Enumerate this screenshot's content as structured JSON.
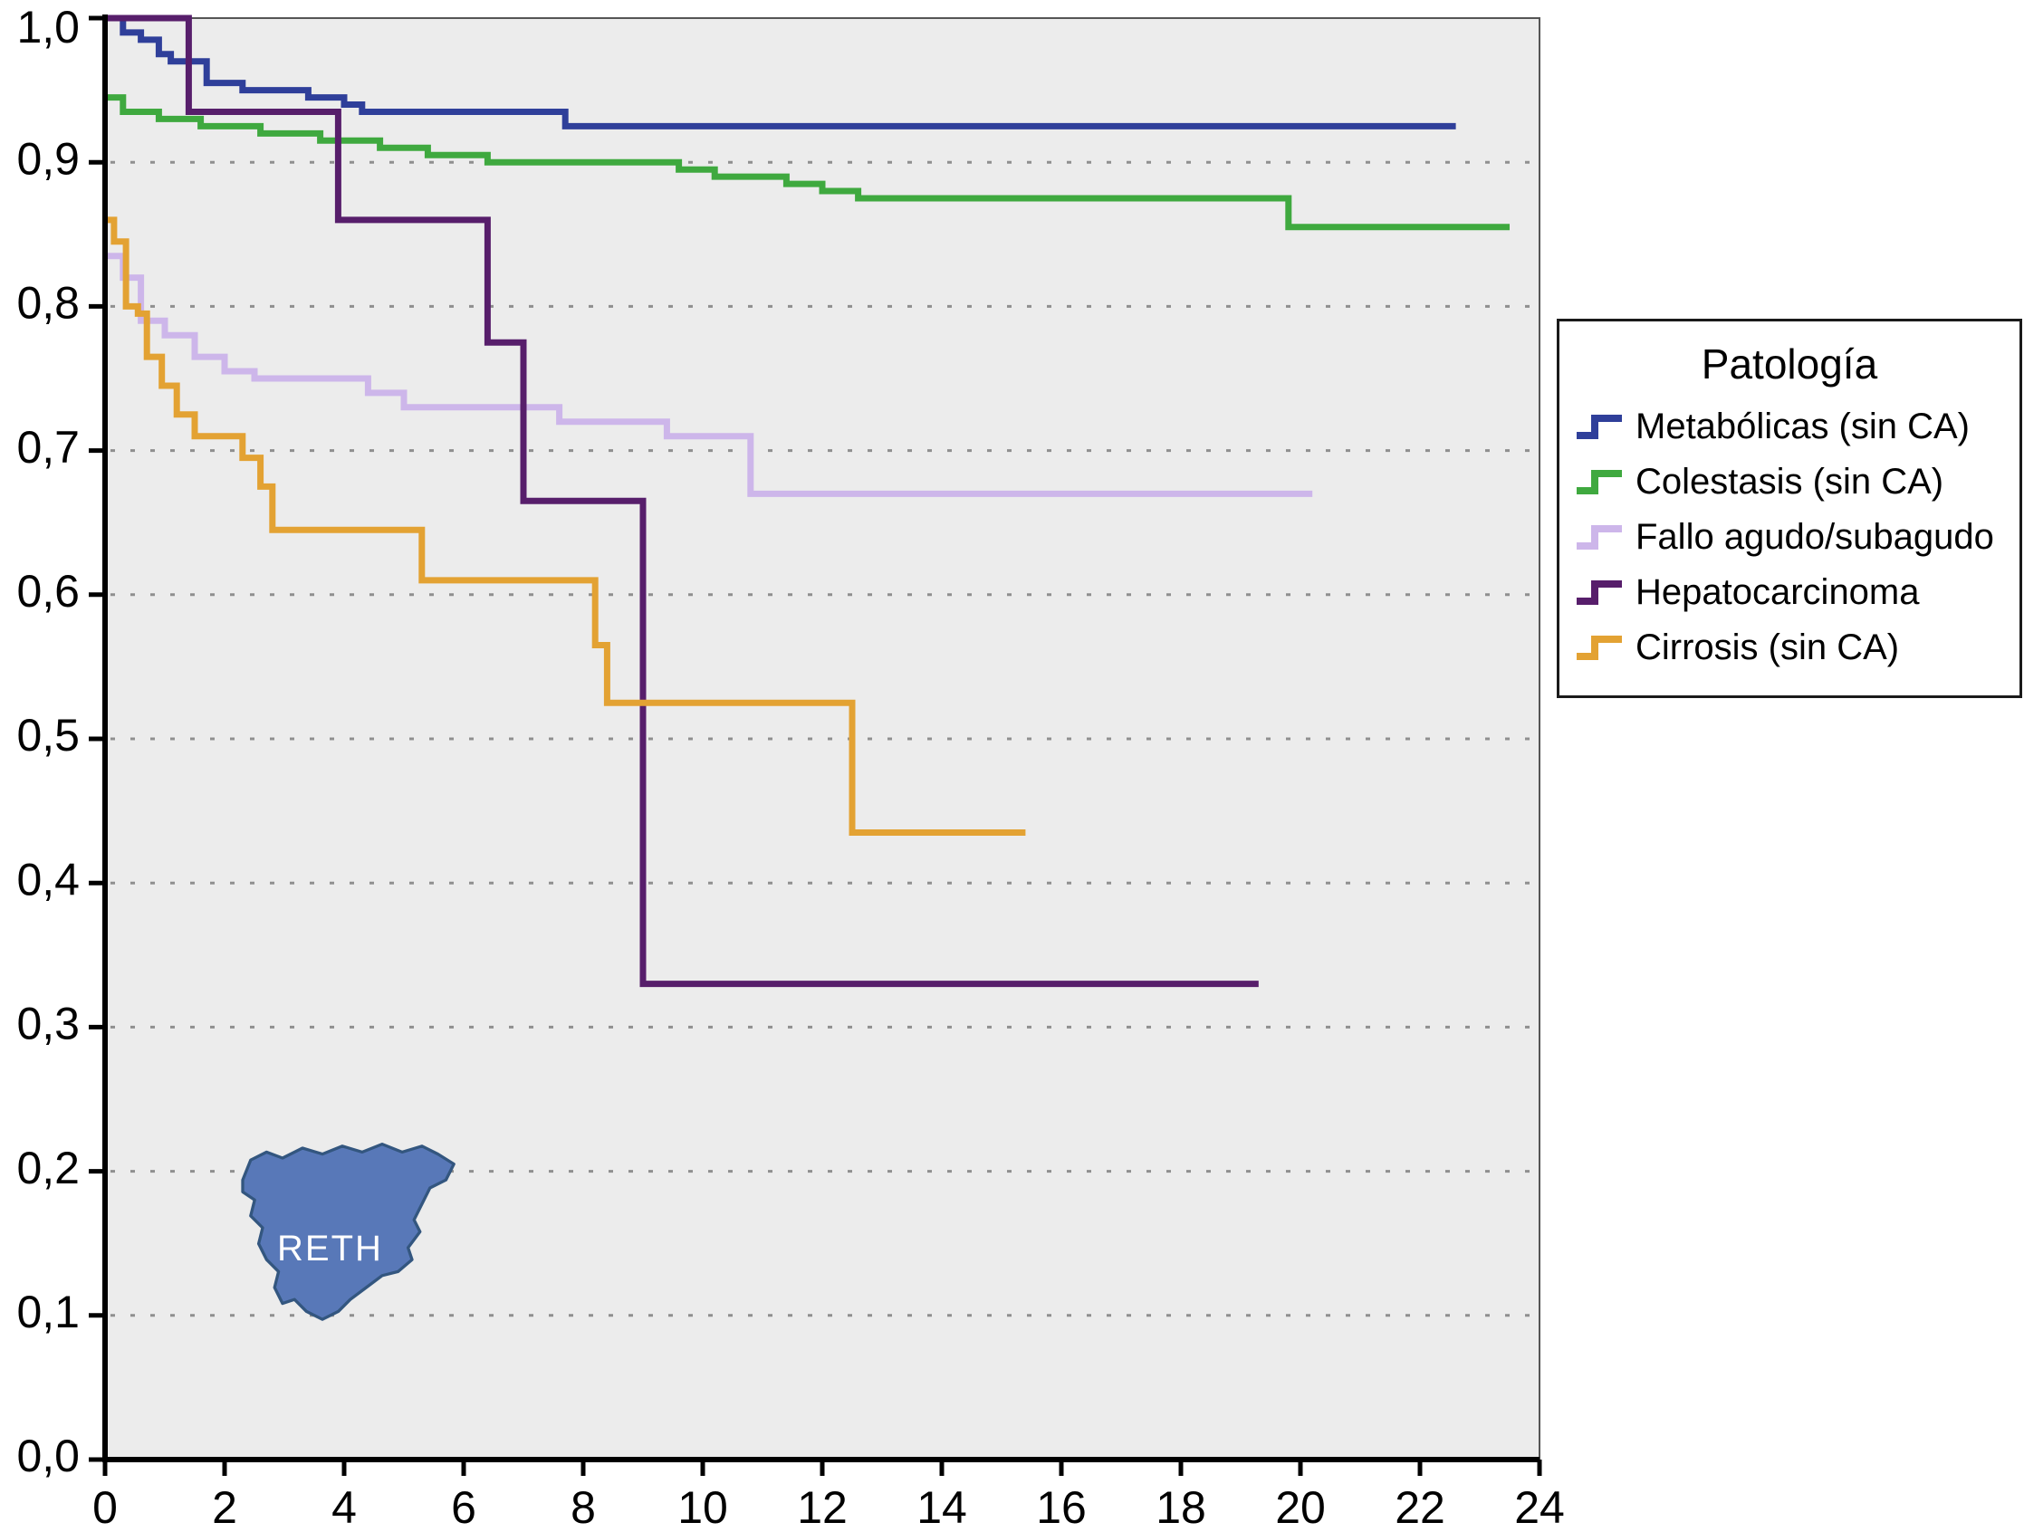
{
  "chart_data": {
    "type": "line",
    "subtype": "kaplan-meier-step",
    "title": "",
    "xlabel": "",
    "ylabel": "",
    "xlim": [
      0,
      24
    ],
    "ylim": [
      0.0,
      1.0
    ],
    "x_ticks": [
      {
        "value": 0,
        "label": "0"
      },
      {
        "value": 2,
        "label": "2"
      },
      {
        "value": 4,
        "label": "4"
      },
      {
        "value": 6,
        "label": "6"
      },
      {
        "value": 8,
        "label": "8"
      },
      {
        "value": 10,
        "label": "10"
      },
      {
        "value": 12,
        "label": "12"
      },
      {
        "value": 14,
        "label": "14"
      },
      {
        "value": 16,
        "label": "16"
      },
      {
        "value": 18,
        "label": "18"
      },
      {
        "value": 20,
        "label": "20"
      },
      {
        "value": 22,
        "label": "22"
      },
      {
        "value": 24,
        "label": "24"
      }
    ],
    "y_ticks": [
      {
        "value": 0.0,
        "label": "0,0"
      },
      {
        "value": 0.1,
        "label": "0,1"
      },
      {
        "value": 0.2,
        "label": "0,2"
      },
      {
        "value": 0.3,
        "label": "0,3"
      },
      {
        "value": 0.4,
        "label": "0,4"
      },
      {
        "value": 0.5,
        "label": "0,5"
      },
      {
        "value": 0.6,
        "label": "0,6"
      },
      {
        "value": 0.7,
        "label": "0,7"
      },
      {
        "value": 0.8,
        "label": "0,8"
      },
      {
        "value": 0.9,
        "label": "0,9"
      },
      {
        "value": 1.0,
        "label": "1,0"
      }
    ],
    "grid": {
      "horizontal": true,
      "style": "dashed",
      "color": "#8f8f8f"
    },
    "plot_background": "#ececec",
    "legend": {
      "title": "Patología",
      "position": "right"
    },
    "watermark": {
      "label": "RETH",
      "map": "spain-silhouette",
      "map_color": "#5878b8"
    },
    "series": [
      {
        "name": "Metabólicas (sin CA)",
        "color": "#2f3f9a",
        "step_points": [
          [
            0,
            1.0
          ],
          [
            0.3,
            0.99
          ],
          [
            0.6,
            0.985
          ],
          [
            0.9,
            0.975
          ],
          [
            1.1,
            0.97
          ],
          [
            1.7,
            0.955
          ],
          [
            2.3,
            0.95
          ],
          [
            3.4,
            0.945
          ],
          [
            4.0,
            0.94
          ],
          [
            4.3,
            0.935
          ],
          [
            7.7,
            0.925
          ],
          [
            22.6,
            0.925
          ]
        ]
      },
      {
        "name": "Colestasis (sin CA)",
        "color": "#3fa93f",
        "step_points": [
          [
            0,
            0.945
          ],
          [
            0.3,
            0.935
          ],
          [
            0.9,
            0.93
          ],
          [
            1.6,
            0.925
          ],
          [
            2.6,
            0.92
          ],
          [
            3.6,
            0.915
          ],
          [
            4.6,
            0.91
          ],
          [
            5.4,
            0.905
          ],
          [
            6.4,
            0.9
          ],
          [
            9.6,
            0.895
          ],
          [
            10.2,
            0.89
          ],
          [
            11.4,
            0.885
          ],
          [
            12.0,
            0.88
          ],
          [
            12.6,
            0.875
          ],
          [
            19.8,
            0.855
          ],
          [
            23.5,
            0.855
          ]
        ]
      },
      {
        "name": "Fallo agudo/subagudo",
        "color": "#cdb6ea",
        "step_points": [
          [
            0,
            0.835
          ],
          [
            0.3,
            0.82
          ],
          [
            0.6,
            0.79
          ],
          [
            1.0,
            0.78
          ],
          [
            1.5,
            0.765
          ],
          [
            2.0,
            0.755
          ],
          [
            2.5,
            0.75
          ],
          [
            4.4,
            0.74
          ],
          [
            5.0,
            0.73
          ],
          [
            7.6,
            0.72
          ],
          [
            9.4,
            0.71
          ],
          [
            10.8,
            0.67
          ],
          [
            20.2,
            0.67
          ]
        ]
      },
      {
        "name": "Hepatocarcinoma",
        "color": "#571e6b",
        "step_points": [
          [
            0,
            1.0
          ],
          [
            1.4,
            0.935
          ],
          [
            3.9,
            0.86
          ],
          [
            6.4,
            0.775
          ],
          [
            7.0,
            0.665
          ],
          [
            9.0,
            0.33
          ],
          [
            19.3,
            0.33
          ]
        ]
      },
      {
        "name": "Cirrosis (sin CA)",
        "color": "#e3a233",
        "step_points": [
          [
            0,
            0.86
          ],
          [
            0.15,
            0.845
          ],
          [
            0.35,
            0.8
          ],
          [
            0.55,
            0.795
          ],
          [
            0.7,
            0.765
          ],
          [
            0.95,
            0.745
          ],
          [
            1.2,
            0.725
          ],
          [
            1.5,
            0.71
          ],
          [
            2.3,
            0.695
          ],
          [
            2.6,
            0.675
          ],
          [
            2.8,
            0.645
          ],
          [
            5.3,
            0.61
          ],
          [
            8.2,
            0.565
          ],
          [
            8.4,
            0.525
          ],
          [
            12.5,
            0.435
          ],
          [
            15.4,
            0.435
          ]
        ]
      }
    ]
  }
}
